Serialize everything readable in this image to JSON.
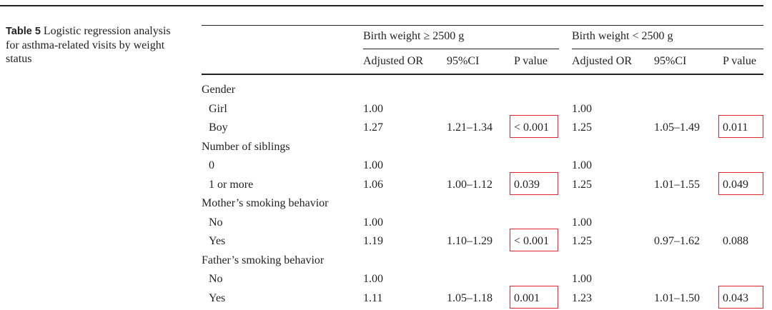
{
  "caption": {
    "label": "Table 5",
    "text": "Logistic regression analysis for asthma-related visits by weight status"
  },
  "groups": [
    "Birth weight ≥ 2500 g",
    "Birth weight < 2500 g"
  ],
  "columns": [
    "Adjusted OR",
    "95%CI",
    "P value",
    "Adjusted OR",
    "95%CI",
    "P value"
  ],
  "rows": [
    {
      "label": "Gender",
      "indent": false,
      "cells": [
        "",
        "",
        "",
        "",
        "",
        ""
      ]
    },
    {
      "label": "Girl",
      "indent": true,
      "cells": [
        "1.00",
        "",
        "",
        "1.00",
        "",
        ""
      ]
    },
    {
      "label": "Boy",
      "indent": true,
      "cells": [
        "1.27",
        "1.21–1.34",
        "< 0.001",
        "1.25",
        "1.05–1.49",
        "0.011"
      ]
    },
    {
      "label": "Number of siblings",
      "indent": false,
      "cells": [
        "",
        "",
        "",
        "",
        "",
        ""
      ]
    },
    {
      "label": "0",
      "indent": true,
      "cells": [
        "1.00",
        "",
        "",
        "1.00",
        "",
        ""
      ]
    },
    {
      "label": "1 or more",
      "indent": true,
      "cells": [
        "1.06",
        "1.00–1.12",
        "0.039",
        "1.25",
        "1.01–1.55",
        "0.049"
      ]
    },
    {
      "label": "Mother’s smoking behavior",
      "indent": false,
      "cells": [
        "",
        "",
        "",
        "",
        "",
        ""
      ]
    },
    {
      "label": "No",
      "indent": true,
      "cells": [
        "1.00",
        "",
        "",
        "1.00",
        "",
        ""
      ]
    },
    {
      "label": "Yes",
      "indent": true,
      "cells": [
        "1.19",
        "1.10–1.29",
        "< 0.001",
        "1.25",
        "0.97–1.62",
        "0.088"
      ]
    },
    {
      "label": "Father’s smoking behavior",
      "indent": false,
      "cells": [
        "",
        "",
        "",
        "",
        "",
        ""
      ]
    },
    {
      "label": "No",
      "indent": true,
      "cells": [
        "1.00",
        "",
        "",
        "1.00",
        "",
        ""
      ]
    },
    {
      "label": "Yes",
      "indent": true,
      "cells": [
        "1.11",
        "1.05–1.18",
        "0.001",
        "1.23",
        "1.01–1.50",
        "0.043"
      ]
    }
  ],
  "highlighted_cells": [
    {
      "row": 2,
      "col": 2
    },
    {
      "row": 2,
      "col": 5
    },
    {
      "row": 5,
      "col": 2
    },
    {
      "row": 5,
      "col": 5
    },
    {
      "row": 8,
      "col": 2
    },
    {
      "row": 11,
      "col": 2
    },
    {
      "row": 11,
      "col": 5
    }
  ],
  "highlight_color": "#e0282e"
}
